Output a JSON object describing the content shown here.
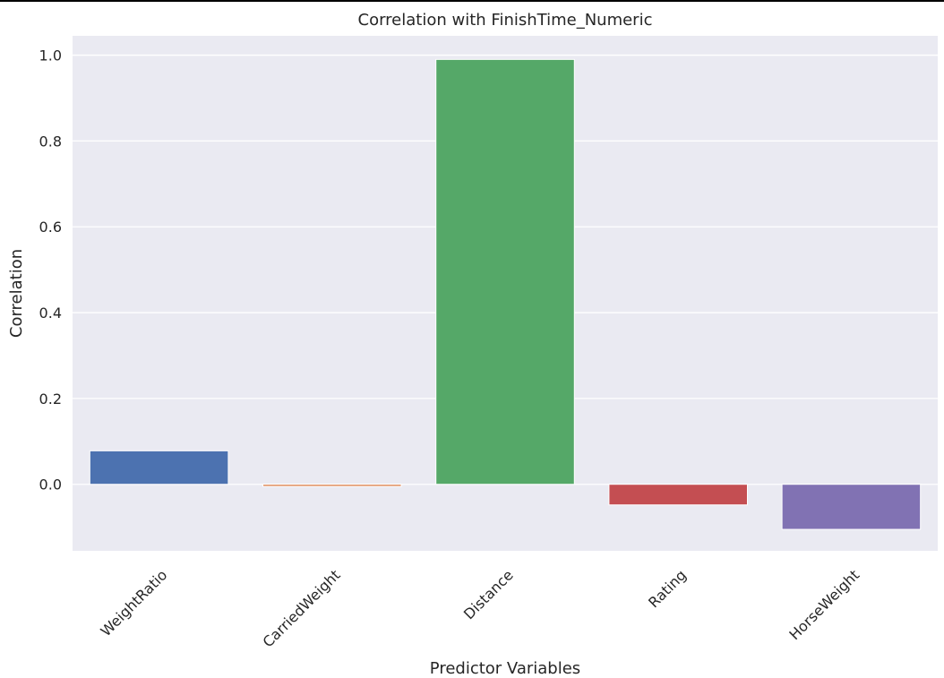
{
  "chart_data": {
    "type": "bar",
    "title": "Correlation with FinishTime_Numeric",
    "xlabel": "Predictor Variables",
    "ylabel": "Correlation",
    "categories": [
      "WeightRatio",
      "CarriedWeight",
      "Distance",
      "Rating",
      "HorseWeight"
    ],
    "values": [
      0.078,
      -0.005,
      0.99,
      -0.048,
      -0.105
    ],
    "colors": [
      "#4c72b0",
      "#dd8452",
      "#55a868",
      "#c44e52",
      "#8172b3"
    ],
    "ylim": [
      -0.155,
      1.045
    ],
    "yticks": [
      0.0,
      0.2,
      0.4,
      0.6,
      0.8,
      1.0
    ],
    "ytick_labels": [
      "0.0",
      "0.2",
      "0.4",
      "0.6",
      "0.8",
      "1.0"
    ],
    "grid": true,
    "legend": "none",
    "background": "#eaeaf2"
  }
}
